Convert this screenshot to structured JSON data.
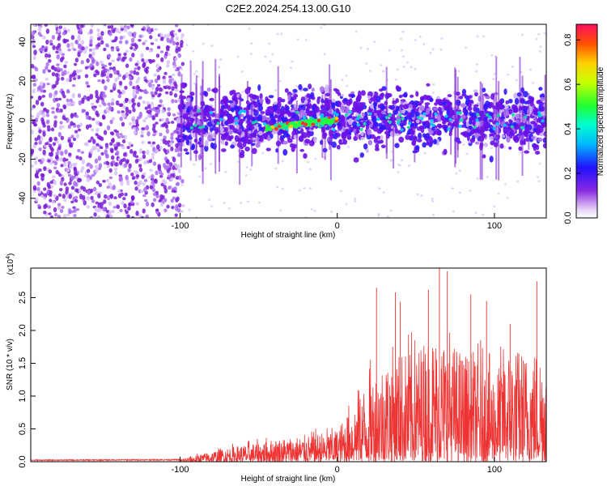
{
  "title": "C2E2.2024.254.13.00.G10",
  "colors": {
    "signal": "#ee3333",
    "blob": "#7a1fd6",
    "frame": "#000000"
  },
  "chart_data": [
    {
      "type": "heatmap",
      "xlabel": "Height of straight line (km)",
      "ylabel": "Frequency (Hz)",
      "xlim": [
        -195,
        133
      ],
      "ylim": [
        -50,
        49
      ],
      "xticks": [
        -100,
        0,
        100
      ],
      "yticks": [
        -40,
        -20,
        0,
        20,
        40
      ],
      "colorbar": {
        "label": "Normalized spectral amplitude",
        "range": [
          0,
          0.87
        ],
        "ticks": [
          "0.0",
          "0.2",
          "0.4",
          "0.6",
          "0.8"
        ],
        "tick_values": [
          0.0,
          0.2,
          0.4,
          0.6,
          0.8
        ]
      },
      "features": {
        "noise_region_x": [
          -195,
          -100
        ],
        "signal_band_center_hz": 0,
        "high_amplitude_x": [
          -45,
          0
        ],
        "high_amplitude_freq_hz": -4
      }
    },
    {
      "type": "line",
      "xlabel": "Height of straight line (km)",
      "ylabel": "SNR (10 * v/v)",
      "exponent_label": "(x10",
      "exponent_power": "4",
      "exponent_close": ")",
      "xlim": [
        -195,
        133
      ],
      "ylim": [
        0,
        2.95
      ],
      "xticks": [
        -100,
        0,
        100
      ],
      "yticks": [
        "0.0",
        "0.5",
        "1.0",
        "1.5",
        "2.0",
        "2.5"
      ],
      "ytick_values": [
        0.0,
        0.5,
        1.0,
        1.5,
        2.0,
        2.5
      ],
      "series": [
        {
          "name": "SNR",
          "x": [
            -195,
            -100,
            -90,
            -80,
            -70,
            -60,
            -50,
            -40,
            -30,
            -20,
            -10,
            0,
            10,
            20,
            30,
            40,
            50,
            60,
            70,
            80,
            90,
            100,
            110,
            120,
            130
          ],
          "envelope": [
            0.03,
            0.04,
            0.1,
            0.16,
            0.22,
            0.26,
            0.3,
            0.35,
            0.38,
            0.4,
            0.45,
            0.5,
            0.9,
            1.3,
            1.6,
            1.7,
            1.75,
            2.0,
            1.9,
            1.7,
            1.6,
            1.45,
            1.8,
            1.7,
            1.8
          ],
          "peaks": [
            {
              "x": 65,
              "y": 2.95
            },
            {
              "x": 70,
              "y": 2.9
            },
            {
              "x": 127,
              "y": 2.75
            },
            {
              "x": 25,
              "y": 2.65
            },
            {
              "x": 58,
              "y": 2.62
            },
            {
              "x": 37,
              "y": 2.58
            },
            {
              "x": 95,
              "y": 2.45
            },
            {
              "x": 85,
              "y": 2.55
            },
            {
              "x": 40,
              "y": 2.44
            },
            {
              "x": 110,
              "y": 2.1
            }
          ]
        }
      ]
    }
  ]
}
